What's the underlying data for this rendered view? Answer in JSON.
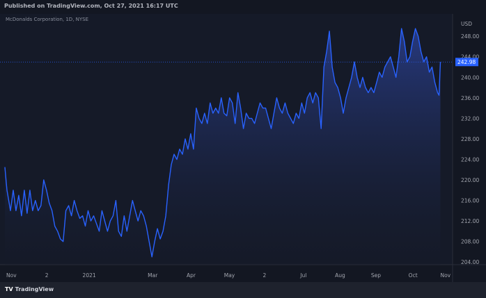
{
  "header": {
    "published": "Published on TradingView.com, Oct 27, 2021 16:17 UTC",
    "symbol": "McDonalds Corporation, 1D, NYSE"
  },
  "footer": {
    "logo_mark": "TV",
    "brand": "TradingView"
  },
  "colors": {
    "background": "#131722",
    "line": "#2962ff",
    "price_tag": "#2962ff",
    "axis_text": "#a3a6af"
  },
  "chart_data": {
    "type": "area",
    "currency": "USD",
    "ylim": [
      202,
      251
    ],
    "y_ticks": [
      204,
      208,
      212,
      216,
      220,
      224,
      228,
      232,
      236,
      240,
      244,
      248
    ],
    "x_ticks": [
      "Nov",
      "2",
      "2021",
      "Mar",
      "Apr",
      "May",
      "2",
      "Jul",
      "Aug",
      "Sep",
      "Oct",
      "Nov"
    ],
    "last_price_marker": 242.98,
    "series": [
      {
        "points": [
          [
            0,
            222.5
          ],
          [
            3,
            218
          ],
          [
            8,
            214
          ],
          [
            12,
            218
          ],
          [
            16,
            214
          ],
          [
            20,
            217
          ],
          [
            24,
            213
          ],
          [
            28,
            218
          ],
          [
            32,
            213.5
          ],
          [
            36,
            218
          ],
          [
            40,
            214
          ],
          [
            44,
            216
          ],
          [
            48,
            214
          ],
          [
            52,
            215
          ],
          [
            56,
            220
          ],
          [
            60,
            218
          ],
          [
            64,
            215.5
          ],
          [
            68,
            214
          ],
          [
            72,
            211
          ],
          [
            76,
            210
          ],
          [
            80,
            208.5
          ],
          [
            84,
            208
          ],
          [
            88,
            214
          ],
          [
            92,
            215
          ],
          [
            96,
            213
          ],
          [
            100,
            216
          ],
          [
            104,
            214
          ],
          [
            108,
            212.5
          ],
          [
            112,
            213
          ],
          [
            116,
            211
          ],
          [
            120,
            214
          ],
          [
            124,
            212
          ],
          [
            128,
            213
          ],
          [
            132,
            211.5
          ],
          [
            136,
            210
          ],
          [
            140,
            214
          ],
          [
            144,
            212
          ],
          [
            148,
            210
          ],
          [
            152,
            212
          ],
          [
            156,
            213
          ],
          [
            160,
            216
          ],
          [
            164,
            210
          ],
          [
            168,
            209
          ],
          [
            172,
            213
          ],
          [
            176,
            210
          ],
          [
            180,
            213
          ],
          [
            184,
            216
          ],
          [
            188,
            214
          ],
          [
            192,
            212
          ],
          [
            196,
            214
          ],
          [
            200,
            213
          ],
          [
            204,
            211
          ],
          [
            208,
            208
          ],
          [
            212,
            205
          ],
          [
            216,
            208
          ],
          [
            220,
            210.5
          ],
          [
            224,
            208.5
          ],
          [
            228,
            210
          ],
          [
            232,
            213
          ],
          [
            236,
            219
          ],
          [
            240,
            223
          ],
          [
            244,
            225
          ],
          [
            248,
            224
          ],
          [
            252,
            226
          ],
          [
            256,
            225
          ],
          [
            260,
            228
          ],
          [
            264,
            226
          ],
          [
            268,
            229
          ],
          [
            272,
            226
          ],
          [
            276,
            234
          ],
          [
            280,
            232
          ],
          [
            284,
            231
          ],
          [
            288,
            233
          ],
          [
            292,
            231
          ],
          [
            296,
            235
          ],
          [
            300,
            233
          ],
          [
            304,
            234
          ],
          [
            308,
            233
          ],
          [
            312,
            236
          ],
          [
            316,
            233
          ],
          [
            320,
            232.5
          ],
          [
            324,
            236
          ],
          [
            328,
            235
          ],
          [
            332,
            231
          ],
          [
            336,
            237
          ],
          [
            340,
            234
          ],
          [
            344,
            230
          ],
          [
            348,
            233
          ],
          [
            352,
            232
          ],
          [
            356,
            232
          ],
          [
            360,
            231
          ],
          [
            364,
            233
          ],
          [
            368,
            235
          ],
          [
            372,
            234
          ],
          [
            376,
            234
          ],
          [
            380,
            232
          ],
          [
            384,
            230
          ],
          [
            388,
            233
          ],
          [
            392,
            236
          ],
          [
            396,
            234
          ],
          [
            400,
            233
          ],
          [
            404,
            235
          ],
          [
            408,
            233
          ],
          [
            412,
            232
          ],
          [
            416,
            231
          ],
          [
            420,
            233
          ],
          [
            424,
            232
          ],
          [
            428,
            235
          ],
          [
            432,
            233
          ],
          [
            436,
            236
          ],
          [
            440,
            237
          ],
          [
            444,
            235
          ],
          [
            448,
            237
          ],
          [
            452,
            236
          ],
          [
            456,
            230
          ],
          [
            460,
            242
          ],
          [
            464,
            245
          ],
          [
            468,
            249
          ],
          [
            472,
            242
          ],
          [
            476,
            239
          ],
          [
            480,
            238
          ],
          [
            484,
            236
          ],
          [
            488,
            233
          ],
          [
            492,
            236
          ],
          [
            496,
            238
          ],
          [
            500,
            240
          ],
          [
            504,
            243
          ],
          [
            508,
            240
          ],
          [
            512,
            238
          ],
          [
            516,
            240
          ],
          [
            520,
            238
          ],
          [
            524,
            237
          ],
          [
            528,
            238
          ],
          [
            532,
            237
          ],
          [
            536,
            239
          ],
          [
            540,
            241
          ],
          [
            544,
            240
          ],
          [
            548,
            242
          ],
          [
            552,
            243
          ],
          [
            556,
            244
          ],
          [
            560,
            242
          ],
          [
            564,
            240
          ],
          [
            568,
            244
          ],
          [
            572,
            249.5
          ],
          [
            576,
            247
          ],
          [
            580,
            243
          ],
          [
            584,
            244
          ],
          [
            588,
            247
          ],
          [
            592,
            249.5
          ],
          [
            596,
            248
          ],
          [
            600,
            245
          ],
          [
            604,
            243
          ],
          [
            608,
            244
          ],
          [
            612,
            241
          ],
          [
            616,
            242
          ],
          [
            620,
            239
          ],
          [
            624,
            237
          ],
          [
            626,
            236.5
          ],
          [
            628,
            242.98
          ]
        ]
      }
    ]
  }
}
